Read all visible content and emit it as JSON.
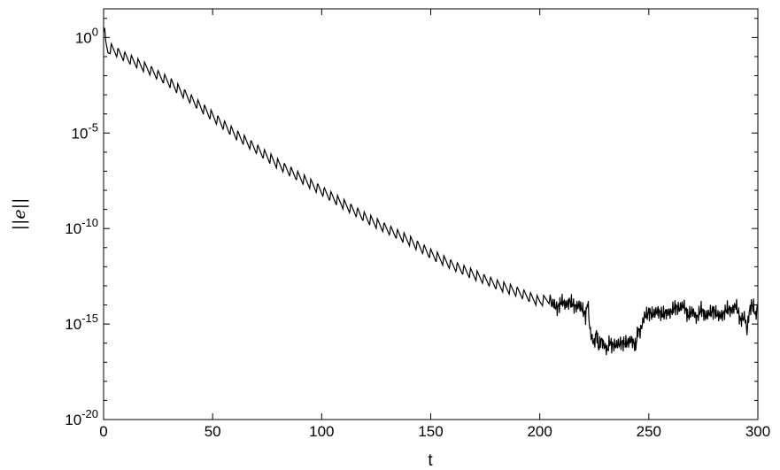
{
  "chart_data": {
    "type": "line",
    "title": "",
    "xlabel": "t",
    "ylabel": "||e||",
    "xlim": [
      0,
      300
    ],
    "ylim_exponent": [
      -20,
      1.5
    ],
    "y_scale": "log",
    "grid": false,
    "x_ticks": [
      {
        "value": 0,
        "label": "0"
      },
      {
        "value": 50,
        "label": "50"
      },
      {
        "value": 100,
        "label": "100"
      },
      {
        "value": 150,
        "label": "150"
      },
      {
        "value": 200,
        "label": "200"
      },
      {
        "value": 250,
        "label": "250"
      },
      {
        "value": 300,
        "label": "300"
      }
    ],
    "y_ticks": [
      {
        "exponent": 0,
        "base": "10",
        "exp": "0"
      },
      {
        "exponent": -5,
        "base": "10",
        "exp": "-5"
      },
      {
        "exponent": -10,
        "base": "10",
        "exp": "-10"
      },
      {
        "exponent": -15,
        "base": "10",
        "exp": "-15"
      },
      {
        "exponent": -20,
        "base": "10",
        "exp": "-20"
      }
    ],
    "series": [
      {
        "color": "#000000",
        "x": [
          0,
          0.5,
          1,
          2,
          4,
          10,
          20,
          30,
          40,
          50,
          60,
          70,
          80,
          90,
          100,
          110,
          120,
          130,
          140,
          150,
          160,
          170,
          180,
          190,
          200,
          203,
          206,
          208,
          210,
          212,
          214,
          216,
          218,
          220,
          221,
          222,
          223,
          224,
          225,
          226,
          227,
          228,
          229,
          230,
          231,
          232,
          233,
          235,
          237,
          240,
          242,
          244,
          245,
          246,
          247,
          248,
          250,
          252,
          254,
          256,
          258,
          260,
          262,
          264,
          266,
          268,
          270,
          272,
          274,
          276,
          278,
          280,
          282,
          284,
          286,
          288,
          290,
          292,
          294,
          295,
          296,
          297,
          298,
          299,
          300
        ],
        "y_exponent": [
          0.3,
          0.5,
          -0.2,
          -0.8,
          -0.9,
          -1.3,
          -1.9,
          -2.6,
          -3.5,
          -4.4,
          -5.3,
          -6.1,
          -6.9,
          -7.6,
          -8.3,
          -9.0,
          -9.7,
          -10.3,
          -10.9,
          -11.6,
          -12.2,
          -12.7,
          -13.2,
          -13.6,
          -14.1,
          -14.0,
          -13.9,
          -14.2,
          -13.8,
          -14.0,
          -13.8,
          -14.1,
          -14.0,
          -14.3,
          -14.6,
          -13.8,
          -15.3,
          -15.8,
          -16.0,
          -15.4,
          -16.3,
          -15.8,
          -16.0,
          -16.2,
          -16.4,
          -15.9,
          -16.1,
          -16.1,
          -16.0,
          -16.0,
          -15.8,
          -16.2,
          -15.3,
          -15.4,
          -15.0,
          -14.6,
          -14.4,
          -14.5,
          -14.3,
          -14.5,
          -14.4,
          -14.4,
          -14.1,
          -14.2,
          -14.0,
          -14.6,
          -14.3,
          -14.7,
          -14.2,
          -14.6,
          -14.4,
          -14.3,
          -14.6,
          -14.5,
          -14.2,
          -14.3,
          -14.0,
          -14.8,
          -14.6,
          -15.4,
          -14.4,
          -14.0,
          -14.1,
          -14.6,
          -14.0
        ]
      }
    ]
  }
}
